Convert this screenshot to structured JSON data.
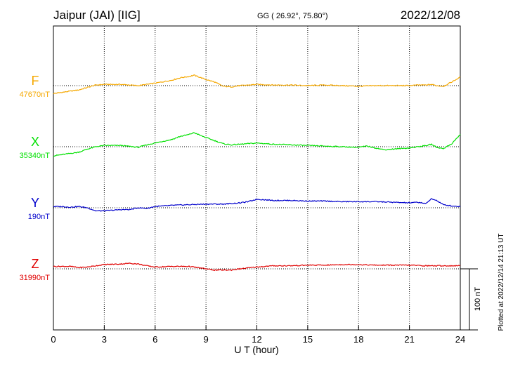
{
  "header": {
    "station": "Jaipur (JAI)  [IIG]",
    "coords": "GG ( 26.92°,  75.80°)",
    "date": "2022/12/08"
  },
  "plotted_note": "Plotted at 2022/12/14 21:13 UT",
  "chart_data": {
    "type": "line",
    "xlabel": "U T (hour)",
    "xlim": [
      0,
      24
    ],
    "xticks": [
      0,
      3,
      6,
      9,
      12,
      15,
      18,
      21,
      24
    ],
    "xtick_labels": [
      "0",
      "3",
      "6",
      "9",
      "12",
      "15",
      "18",
      "21",
      "24"
    ],
    "scale_bar": {
      "value": 100,
      "label": "100 nT"
    },
    "grid": true,
    "series": [
      {
        "name": "F",
        "baseline_label": "47670nT",
        "baseline_nT": 47670,
        "color": "#f5a800",
        "x": [
          0,
          0.5,
          1,
          1.5,
          2,
          2.5,
          3,
          4,
          5,
          5.5,
          6,
          7,
          7.5,
          8,
          8.3,
          8.7,
          9,
          9.5,
          10,
          10.5,
          11,
          12,
          13,
          14,
          15,
          16,
          17,
          18,
          19,
          20,
          21,
          21.5,
          22,
          22.3,
          22.6,
          23,
          23.5,
          24
        ],
        "deviation_nT": [
          -13,
          -11,
          -9,
          -7,
          -3,
          1,
          2,
          2,
          0,
          2,
          4,
          9,
          13,
          15,
          17,
          13,
          10,
          6,
          -1,
          -2,
          0,
          2,
          1,
          1,
          0,
          1,
          0,
          -1,
          0,
          0,
          0,
          1,
          1,
          2,
          0,
          -1,
          6,
          14
        ]
      },
      {
        "name": "X",
        "baseline_label": "35340nT",
        "baseline_nT": 35340,
        "color": "#00e000",
        "x": [
          0,
          0.5,
          1,
          1.5,
          2,
          2.5,
          3,
          4,
          5,
          5.5,
          6,
          7,
          7.5,
          8,
          8.3,
          8.7,
          9,
          9.5,
          10,
          10.5,
          11,
          12,
          13,
          14,
          15,
          16,
          17,
          18,
          18.5,
          19,
          19.5,
          20,
          21,
          21.5,
          22,
          22.3,
          22.6,
          23,
          23.5,
          24
        ],
        "deviation_nT": [
          -15,
          -13,
          -11,
          -9,
          -4,
          0,
          2,
          2,
          -1,
          3,
          6,
          12,
          17,
          20,
          23,
          18,
          15,
          10,
          5,
          3,
          4,
          6,
          4,
          3,
          2,
          1,
          0,
          -1,
          1,
          -2,
          -5,
          -4,
          -2,
          0,
          2,
          4,
          -1,
          -3,
          5,
          20
        ]
      },
      {
        "name": "Y",
        "baseline_label": "190nT",
        "baseline_nT": 190,
        "color": "#0000cc",
        "x": [
          0,
          0.5,
          1,
          1.5,
          2,
          2.5,
          3,
          4,
          4.5,
          5,
          5.5,
          6,
          7,
          8,
          9,
          10,
          11,
          11.5,
          12,
          13,
          14,
          15,
          16,
          17,
          18,
          19,
          20,
          21,
          21.5,
          22,
          22.3,
          22.6,
          23,
          23.5,
          24
        ],
        "deviation_nT": [
          2,
          2,
          1,
          2,
          0,
          -5,
          -5,
          -3,
          -3,
          0,
          -1,
          2,
          4,
          5,
          6,
          6,
          8,
          10,
          14,
          12,
          12,
          11,
          11,
          10,
          10,
          10,
          9,
          8,
          9,
          7,
          15,
          12,
          5,
          3,
          2
        ]
      },
      {
        "name": "Z",
        "baseline_label": "31990nT",
        "baseline_nT": 31990,
        "color": "#e00000",
        "x": [
          0,
          0.5,
          1,
          1.5,
          2,
          2.5,
          3,
          4,
          4.5,
          5,
          5.5,
          6,
          7,
          8,
          9,
          9.5,
          10,
          10.5,
          11,
          12,
          13,
          14,
          15,
          16,
          17,
          18,
          19,
          20,
          21,
          22,
          23,
          24
        ],
        "deviation_nT": [
          4,
          4,
          4,
          2,
          3,
          5,
          7,
          8,
          9,
          8,
          5,
          3,
          4,
          4,
          0,
          -2,
          -2,
          -2,
          0,
          3,
          5,
          5,
          6,
          6,
          7,
          7,
          6,
          6,
          6,
          5,
          5,
          5
        ]
      }
    ]
  }
}
